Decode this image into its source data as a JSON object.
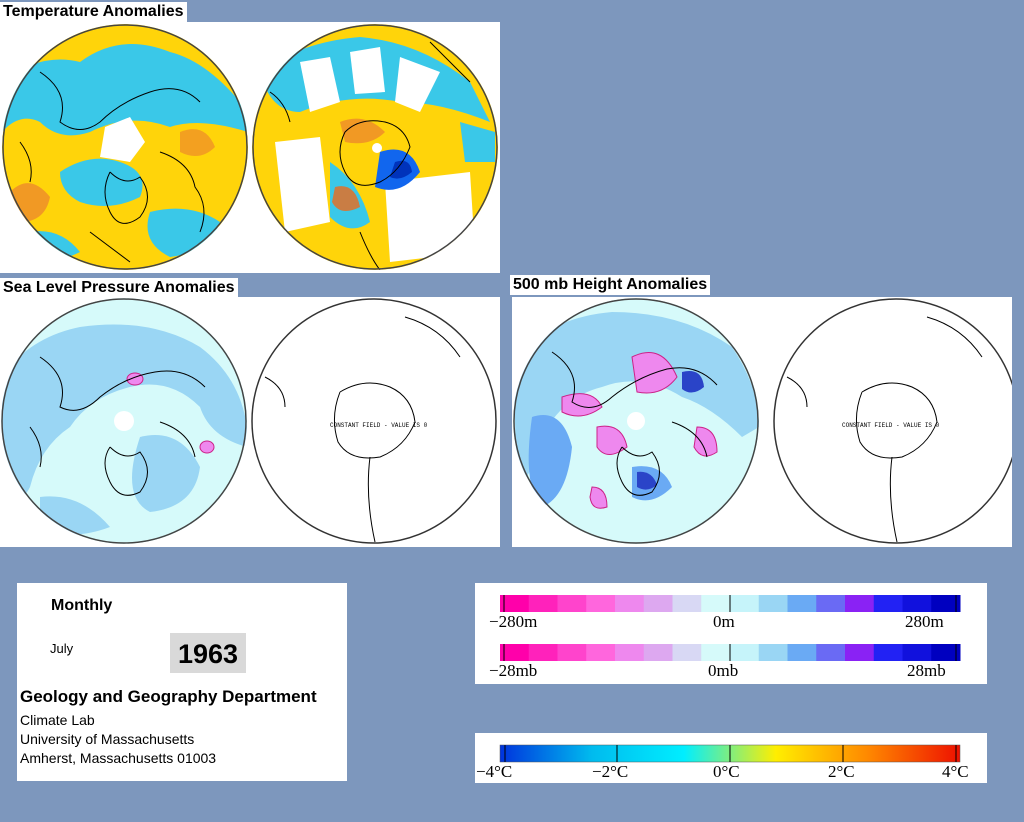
{
  "titles": {
    "temperature": "Temperature Anomalies",
    "slp": "Sea Level Pressure Anomalies",
    "height500": "500 mb Height Anomalies"
  },
  "maps": {
    "constant_field_note": "CONSTANT FIELD - VALUE IS 0"
  },
  "info": {
    "period": "Monthly",
    "month": "July",
    "year": "1963",
    "department": "Geology and Geography Department",
    "lab": "Climate Lab",
    "university": "University of Massachusetts",
    "address": "Amherst, Massachusetts 01003"
  },
  "scales": {
    "height": {
      "labels": [
        "−280m",
        "0m",
        "280m"
      ],
      "colors": [
        "#ff00aa",
        "#ff22bb",
        "#ff44cc",
        "#ff66dd",
        "#ee88ee",
        "#dda8f0",
        "#d8d8f4",
        "#d6fafa",
        "#c6f4fa",
        "#9ad6f4",
        "#6aaaf4",
        "#6a6af4",
        "#8a22f4",
        "#2222f4",
        "#1111dd",
        "#0000c0"
      ]
    },
    "pressure": {
      "labels": [
        "−28mb",
        "0mb",
        "28mb"
      ],
      "colors": [
        "#ff00aa",
        "#ff22bb",
        "#ff44cc",
        "#ff66dd",
        "#ee88ee",
        "#dda8f0",
        "#d8d8f4",
        "#d6fafa",
        "#c6f4fa",
        "#9ad6f4",
        "#6aaaf4",
        "#6a6af4",
        "#8a22f4",
        "#2222f4",
        "#1111dd",
        "#0000c0"
      ]
    },
    "temperature": {
      "labels": [
        "−4°C",
        "−2°C",
        "0°C",
        "2°C",
        "4°C"
      ],
      "gradient": [
        "#0033dd",
        "#00bbee",
        "#00eeff",
        "#ffee00",
        "#ff8800",
        "#ee1100"
      ]
    }
  }
}
